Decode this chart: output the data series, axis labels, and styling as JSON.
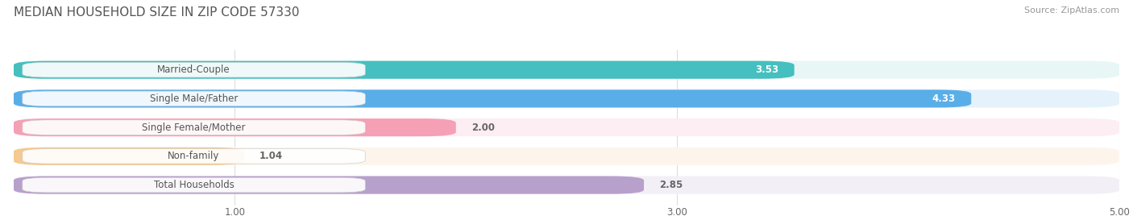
{
  "title": "MEDIAN HOUSEHOLD SIZE IN ZIP CODE 57330",
  "source": "Source: ZipAtlas.com",
  "categories": [
    "Married-Couple",
    "Single Male/Father",
    "Single Female/Mother",
    "Non-family",
    "Total Households"
  ],
  "values": [
    3.53,
    4.33,
    2.0,
    1.04,
    2.85
  ],
  "bar_colors": [
    "#45BFBF",
    "#5AAEE8",
    "#F5A0B5",
    "#F5C990",
    "#B8A0CC"
  ],
  "bar_bg_colors": [
    "#E8F6F6",
    "#E5F2FB",
    "#FCEEF3",
    "#FDF5EC",
    "#F2EFF6"
  ],
  "xlim": [
    0,
    5.0
  ],
  "xticks": [
    1.0,
    3.0,
    5.0
  ],
  "xtick_labels": [
    "1.00",
    "3.00",
    "5.00"
  ],
  "value_inside_threshold": 3.0,
  "value_color_inside": "#FFFFFF",
  "value_color_outside": "#666666",
  "label_color": "#555555",
  "title_color": "#555555",
  "title_fontsize": 11,
  "source_fontsize": 8,
  "label_fontsize": 8.5,
  "value_fontsize": 8.5,
  "bar_height": 0.62,
  "background_color": "#FFFFFF",
  "grid_color": "#DDDDDD",
  "bar_gap_color": "#FFFFFF"
}
